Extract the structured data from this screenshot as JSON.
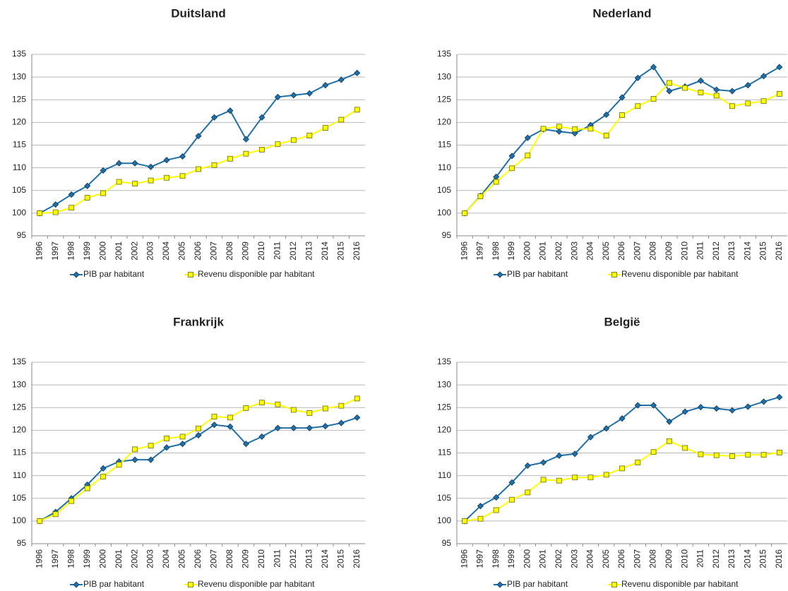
{
  "chart_data": [
    {
      "type": "line",
      "title": "Duitsland",
      "categories": [
        "1996",
        "1997",
        "1998",
        "1999",
        "2000",
        "2001",
        "2002",
        "2003",
        "2004",
        "2005",
        "2006",
        "2007",
        "2008",
        "2009",
        "2010",
        "2011",
        "2012",
        "2013",
        "2014",
        "2015",
        "2016"
      ],
      "ylim": [
        95,
        135
      ],
      "yticks": [
        95,
        100,
        105,
        110,
        115,
        120,
        125,
        130,
        135
      ],
      "grid": true,
      "legend": "bottom",
      "series": [
        {
          "name": "PIB par habitant",
          "color": "#1f6fa8",
          "marker": "diamond",
          "values": [
            100,
            101.9,
            104.1,
            106,
            109.4,
            111,
            111,
            110.2,
            111.7,
            112.5,
            117,
            121.1,
            122.6,
            116.3,
            121.1,
            125.6,
            126,
            126.4,
            128.2,
            129.4,
            130.9
          ]
        },
        {
          "name": "Revenu disponible par habitant",
          "color": "#ffff00",
          "marker": "square",
          "values": [
            100,
            100.2,
            101.2,
            103.4,
            104.4,
            106.9,
            106.5,
            107.2,
            107.8,
            108.2,
            109.7,
            110.6,
            112,
            113.1,
            114,
            115.2,
            116.1,
            117.1,
            118.8,
            120.6,
            122.8
          ]
        }
      ]
    },
    {
      "type": "line",
      "title": "Nederland",
      "categories": [
        "1996",
        "1997",
        "1998",
        "1999",
        "2000",
        "2001",
        "2002",
        "2003",
        "2004",
        "2005",
        "2006",
        "2007",
        "2008",
        "2009",
        "2010",
        "2011",
        "2012",
        "2013",
        "2014",
        "2015",
        "2016"
      ],
      "ylim": [
        95,
        135
      ],
      "yticks": [
        95,
        100,
        105,
        110,
        115,
        120,
        125,
        130,
        135
      ],
      "grid": true,
      "legend": "bottom",
      "series": [
        {
          "name": "PIB par habitant",
          "color": "#1f6fa8",
          "marker": "diamond",
          "values": [
            100,
            103.8,
            108,
            112.6,
            116.6,
            118.5,
            118,
            117.6,
            119.4,
            121.7,
            125.5,
            129.8,
            132.2,
            126.9,
            127.9,
            129.2,
            127.2,
            126.9,
            128.2,
            130.2,
            132.2
          ]
        },
        {
          "name": "Revenu disponible par habitant",
          "color": "#ffff00",
          "marker": "square",
          "values": [
            100,
            103.7,
            106.9,
            109.9,
            112.7,
            118.6,
            119.1,
            118.5,
            118.6,
            117.1,
            121.6,
            123.6,
            125.2,
            128.7,
            127.6,
            126.6,
            125.9,
            123.6,
            124.2,
            124.7,
            126.3
          ]
        }
      ]
    },
    {
      "type": "line",
      "title": "Frankrijk",
      "categories": [
        "1996",
        "1997",
        "1998",
        "1999",
        "2000",
        "2001",
        "2002",
        "2003",
        "2004",
        "2005",
        "2006",
        "2007",
        "2008",
        "2009",
        "2010",
        "2011",
        "2012",
        "2013",
        "2014",
        "2015",
        "2016"
      ],
      "ylim": [
        95,
        135
      ],
      "yticks": [
        95,
        100,
        105,
        110,
        115,
        120,
        125,
        130,
        135
      ],
      "grid": true,
      "legend": "bottom",
      "series": [
        {
          "name": "PIB par habitant",
          "color": "#1f6fa8",
          "marker": "diamond",
          "values": [
            100,
            102,
            105,
            108,
            111.6,
            113.1,
            113.5,
            113.5,
            116.2,
            117,
            118.9,
            121.2,
            120.8,
            117,
            118.6,
            120.5,
            120.5,
            120.5,
            120.9,
            121.6,
            122.8
          ]
        },
        {
          "name": "Revenu disponible par habitant",
          "color": "#ffff00",
          "marker": "square",
          "values": [
            100,
            101.5,
            104.4,
            107.2,
            109.8,
            112.4,
            115.8,
            116.6,
            118.2,
            118.6,
            120.4,
            123,
            122.8,
            124.9,
            126.1,
            125.7,
            124.5,
            123.8,
            124.8,
            125.4,
            127
          ]
        }
      ]
    },
    {
      "type": "line",
      "title": "België",
      "categories": [
        "1996",
        "1997",
        "1998",
        "1999",
        "2000",
        "2001",
        "2002",
        "2003",
        "2004",
        "2005",
        "2006",
        "2007",
        "2008",
        "2009",
        "2010",
        "2011",
        "2012",
        "2013",
        "2014",
        "2015",
        "2016"
      ],
      "ylim": [
        95,
        135
      ],
      "yticks": [
        95,
        100,
        105,
        110,
        115,
        120,
        125,
        130,
        135
      ],
      "grid": true,
      "legend": "bottom",
      "series": [
        {
          "name": "PIB par habitant",
          "color": "#1f6fa8",
          "marker": "diamond",
          "values": [
            100,
            103.3,
            105.2,
            108.5,
            112.2,
            112.9,
            114.4,
            114.8,
            118.5,
            120.4,
            122.6,
            125.5,
            125.5,
            121.9,
            124.1,
            125.1,
            124.8,
            124.4,
            125.2,
            126.3,
            127.3
          ]
        },
        {
          "name": "Revenu disponible par habitant",
          "color": "#ffff00",
          "marker": "square",
          "values": [
            100,
            100.5,
            102.4,
            104.7,
            106.3,
            109.1,
            108.9,
            109.6,
            109.6,
            110.2,
            111.6,
            112.9,
            115.2,
            117.6,
            116.1,
            114.7,
            114.5,
            114.3,
            114.6,
            114.6,
            115.1
          ]
        }
      ]
    }
  ]
}
